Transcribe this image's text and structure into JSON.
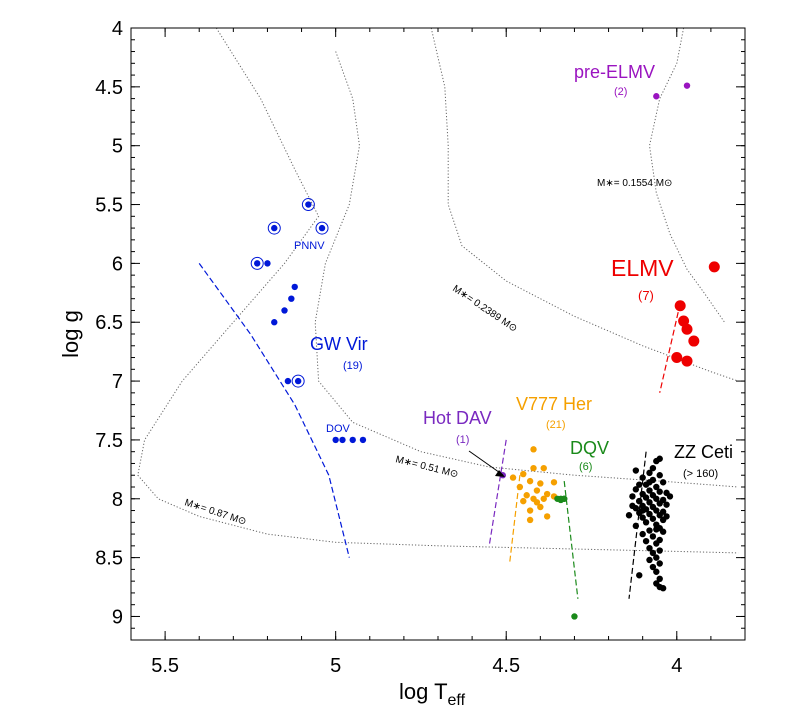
{
  "chart_data": {
    "type": "scatter",
    "xlabel": "log T",
    "xlabel_sub": "eff",
    "ylabel": "log g",
    "xlim": [
      5.6,
      3.8
    ],
    "ylim": [
      9.2,
      4.0
    ],
    "x_ticks": [
      5.5,
      5,
      4.5,
      4
    ],
    "x_tick_labels": [
      "5.5",
      "5",
      "4.5",
      "4"
    ],
    "y_ticks": [
      4,
      4.5,
      5,
      5.5,
      6,
      6.5,
      7,
      7.5,
      8,
      8.5,
      9
    ],
    "y_tick_labels": [
      "4",
      "4.5",
      "5",
      "5.5",
      "6",
      "6.5",
      "7",
      "7.5",
      "8",
      "8.5",
      "9"
    ],
    "grid": false,
    "colors": {
      "gwvir": "#0018d8",
      "elmv": "#ee0000",
      "preelmv": "#9a14c0",
      "hotdav": "#7a2ac0",
      "v777": "#f5a000",
      "dqv": "#1a8a1a",
      "zzceti": "#000000",
      "track": "#666666"
    },
    "groups": [
      {
        "name": "GW Vir",
        "count_label": "(19)",
        "color": "#0018d8",
        "points": [
          [
            5.08,
            5.5
          ],
          [
            5.18,
            5.7
          ],
          [
            5.04,
            5.7
          ],
          [
            5.23,
            6.0
          ],
          [
            5.2,
            6.0
          ],
          [
            5.12,
            6.2
          ],
          [
            5.13,
            6.3
          ],
          [
            5.15,
            6.4
          ],
          [
            5.18,
            6.5
          ],
          [
            5.14,
            7.0
          ],
          [
            5.11,
            7.0
          ],
          [
            5.0,
            7.5
          ],
          [
            4.98,
            7.5
          ],
          [
            4.95,
            7.5
          ],
          [
            4.92,
            7.5
          ]
        ],
        "ringed": [
          [
            5.08,
            5.5
          ],
          [
            5.18,
            5.7
          ],
          [
            5.04,
            5.7
          ],
          [
            5.23,
            6.0
          ],
          [
            5.11,
            7.0
          ]
        ]
      },
      {
        "name": "ELMV",
        "count_label": "(7)",
        "color": "#ee0000",
        "points": [
          [
            3.89,
            6.03
          ],
          [
            3.99,
            6.36
          ],
          [
            3.98,
            6.49
          ],
          [
            3.97,
            6.56
          ],
          [
            3.95,
            6.66
          ],
          [
            4.0,
            6.8
          ],
          [
            3.97,
            6.83
          ]
        ]
      },
      {
        "name": "pre-ELMV",
        "count_label": "(2)",
        "color": "#9a14c0",
        "points": [
          [
            4.06,
            4.58
          ],
          [
            3.97,
            4.49
          ]
        ]
      },
      {
        "name": "Hot DAV",
        "count_label": "(1)",
        "color": "#7a2ac0",
        "points": [
          [
            4.51,
            7.8
          ]
        ]
      },
      {
        "name": "V777 Her",
        "count_label": "(21)",
        "color": "#f5a000",
        "points": [
          [
            4.42,
            7.58
          ],
          [
            4.42,
            7.74
          ],
          [
            4.39,
            7.74
          ],
          [
            4.45,
            7.79
          ],
          [
            4.48,
            7.82
          ],
          [
            4.43,
            7.85
          ],
          [
            4.36,
            7.86
          ],
          [
            4.4,
            7.87
          ],
          [
            4.46,
            7.9
          ],
          [
            4.41,
            7.93
          ],
          [
            4.38,
            7.96
          ],
          [
            4.44,
            7.97
          ],
          [
            4.42,
            8.0
          ],
          [
            4.39,
            8.0
          ],
          [
            4.45,
            8.02
          ],
          [
            4.41,
            8.03
          ],
          [
            4.4,
            8.07
          ],
          [
            4.43,
            8.1
          ],
          [
            4.38,
            8.15
          ],
          [
            4.43,
            8.18
          ],
          [
            4.36,
            7.98
          ]
        ]
      },
      {
        "name": "DQV",
        "count_label": "(6)",
        "color": "#1a8a1a",
        "points": [
          [
            4.33,
            8.0
          ],
          [
            4.34,
            8.0
          ],
          [
            4.35,
            8.0
          ],
          [
            4.33,
            8.0
          ],
          [
            4.34,
            8.01
          ],
          [
            4.3,
            9.0
          ]
        ]
      },
      {
        "name": "ZZ Ceti",
        "count_label": "(> 160)",
        "color": "#000000",
        "points": [
          [
            4.05,
            7.66
          ],
          [
            4.06,
            7.68
          ],
          [
            4.07,
            7.74
          ],
          [
            4.12,
            7.76
          ],
          [
            4.08,
            7.78
          ],
          [
            4.05,
            7.8
          ],
          [
            4.1,
            7.82
          ],
          [
            4.07,
            7.84
          ],
          [
            4.04,
            7.86
          ],
          [
            4.11,
            7.88
          ],
          [
            4.09,
            7.88
          ],
          [
            4.06,
            7.9
          ],
          [
            4.12,
            7.92
          ],
          [
            4.08,
            7.93
          ],
          [
            4.05,
            7.94
          ],
          [
            4.03,
            7.95
          ],
          [
            4.1,
            7.96
          ],
          [
            4.07,
            7.97
          ],
          [
            4.13,
            7.98
          ],
          [
            4.09,
            7.99
          ],
          [
            4.06,
            8.0
          ],
          [
            4.04,
            8.01
          ],
          [
            4.11,
            8.02
          ],
          [
            4.08,
            8.03
          ],
          [
            4.05,
            8.04
          ],
          [
            4.03,
            8.05
          ],
          [
            4.1,
            8.06
          ],
          [
            4.07,
            8.07
          ],
          [
            4.12,
            8.08
          ],
          [
            4.09,
            8.09
          ],
          [
            4.06,
            8.1
          ],
          [
            4.04,
            8.11
          ],
          [
            4.11,
            8.12
          ],
          [
            4.08,
            8.13
          ],
          [
            4.05,
            8.14
          ],
          [
            4.14,
            8.14
          ],
          [
            4.1,
            8.16
          ],
          [
            4.07,
            8.17
          ],
          [
            4.04,
            8.18
          ],
          [
            4.09,
            8.2
          ],
          [
            4.06,
            8.22
          ],
          [
            4.12,
            8.23
          ],
          [
            4.05,
            8.25
          ],
          [
            4.08,
            8.27
          ],
          [
            4.04,
            8.28
          ],
          [
            4.1,
            8.3
          ],
          [
            4.07,
            8.32
          ],
          [
            4.05,
            8.35
          ],
          [
            4.09,
            8.36
          ],
          [
            4.06,
            8.38
          ],
          [
            4.08,
            8.42
          ],
          [
            4.05,
            8.44
          ],
          [
            4.07,
            8.46
          ],
          [
            4.06,
            8.5
          ],
          [
            4.08,
            8.52
          ],
          [
            4.05,
            8.55
          ],
          [
            4.07,
            8.58
          ],
          [
            4.06,
            8.62
          ],
          [
            4.11,
            8.65
          ],
          [
            4.05,
            8.68
          ],
          [
            4.06,
            8.72
          ],
          [
            4.05,
            8.75
          ],
          [
            4.04,
            8.76
          ],
          [
            4.11,
            8.02
          ],
          [
            4.13,
            8.06
          ],
          [
            4.02,
            7.98
          ],
          [
            4.03,
            8.15
          ],
          [
            4.08,
            7.86
          ],
          [
            4.1,
            8.1
          ],
          [
            4.06,
            8.26
          ]
        ]
      }
    ],
    "strip_labels": [
      {
        "text": "PNNV",
        "color": "#0018d8"
      },
      {
        "text": "DOV",
        "color": "#0018d8"
      }
    ],
    "tracks": [
      {
        "label": "M∗= 0.87 M⊙",
        "points": [
          [
            5.35,
            4.0
          ],
          [
            5.22,
            4.6
          ],
          [
            5.12,
            5.2
          ],
          [
            5.05,
            5.6
          ],
          [
            5.15,
            6.0
          ],
          [
            5.3,
            6.5
          ],
          [
            5.45,
            7.0
          ],
          [
            5.56,
            7.5
          ],
          [
            5.58,
            7.8
          ],
          [
            5.52,
            8.0
          ],
          [
            5.4,
            8.15
          ],
          [
            5.2,
            8.3
          ],
          [
            5.0,
            8.37
          ],
          [
            4.7,
            8.4
          ],
          [
            4.4,
            8.42
          ],
          [
            4.1,
            8.44
          ],
          [
            3.82,
            8.46
          ]
        ]
      },
      {
        "label": "M∗= 0.51 M⊙",
        "points": [
          [
            5.0,
            4.2
          ],
          [
            4.95,
            4.6
          ],
          [
            4.93,
            5.0
          ],
          [
            4.96,
            5.5
          ],
          [
            5.03,
            6.0
          ],
          [
            5.06,
            6.5
          ],
          [
            5.05,
            7.0
          ],
          [
            4.95,
            7.35
          ],
          [
            4.75,
            7.6
          ],
          [
            4.55,
            7.73
          ],
          [
            4.3,
            7.8
          ],
          [
            4.0,
            7.86
          ],
          [
            3.82,
            7.9
          ]
        ]
      },
      {
        "label": "M∗= 0.2389 M⊙",
        "points": [
          [
            4.72,
            4.0
          ],
          [
            4.68,
            4.5
          ],
          [
            4.67,
            5.0
          ],
          [
            4.67,
            5.5
          ],
          [
            4.63,
            5.85
          ],
          [
            4.5,
            6.15
          ],
          [
            4.3,
            6.45
          ],
          [
            4.1,
            6.7
          ],
          [
            3.9,
            6.92
          ],
          [
            3.82,
            7.0
          ]
        ]
      },
      {
        "label": "M∗= 0.1554 M⊙",
        "points": [
          [
            3.98,
            4.0
          ],
          [
            4.0,
            4.3
          ],
          [
            4.05,
            4.6
          ],
          [
            4.08,
            5.0
          ],
          [
            4.06,
            5.4
          ],
          [
            4.02,
            5.75
          ],
          [
            3.97,
            6.05
          ],
          [
            3.92,
            6.25
          ],
          [
            3.86,
            6.5
          ]
        ]
      }
    ],
    "strips": [
      {
        "color": "#0018d8",
        "points": [
          [
            5.4,
            6.0
          ],
          [
            5.25,
            6.6
          ],
          [
            5.12,
            7.2
          ],
          [
            5.02,
            7.8
          ],
          [
            4.96,
            8.5
          ]
        ]
      },
      {
        "color": "#ee0000",
        "points": [
          [
            3.99,
            6.34
          ],
          [
            4.05,
            7.1
          ]
        ]
      },
      {
        "color": "#7a2ac0",
        "points": [
          [
            4.5,
            7.5
          ],
          [
            4.55,
            8.4
          ]
        ]
      },
      {
        "color": "#f5a000",
        "points": [
          [
            4.46,
            7.8
          ],
          [
            4.49,
            8.55
          ]
        ]
      },
      {
        "color": "#1a8a1a",
        "points": [
          [
            4.33,
            7.85
          ],
          [
            4.29,
            8.85
          ]
        ]
      },
      {
        "color": "#000000",
        "points": [
          [
            4.09,
            7.6
          ],
          [
            4.14,
            8.85
          ]
        ]
      }
    ],
    "annotations": [
      {
        "name": "label-pre-elmv",
        "text": "pre-ELMV",
        "sub": "(2)",
        "color": "#9a14c0"
      },
      {
        "name": "label-elmv",
        "text": "ELMV",
        "sub": "(7)",
        "color": "#ee0000"
      },
      {
        "name": "label-gwvir",
        "text": "GW Vir",
        "sub": "(19)",
        "color": "#0018d8"
      },
      {
        "name": "label-hotdav",
        "text": "Hot DAV",
        "sub": "(1)",
        "color": "#7a2ac0"
      },
      {
        "name": "label-v777",
        "text": "V777 Her",
        "sub": "(21)",
        "color": "#f5a000"
      },
      {
        "name": "label-dqv",
        "text": "DQV",
        "sub": "(6)",
        "color": "#1a8a1a"
      },
      {
        "name": "label-zzceti",
        "text": "ZZ Ceti",
        "sub": "(> 160)",
        "color": "#000000"
      }
    ]
  }
}
